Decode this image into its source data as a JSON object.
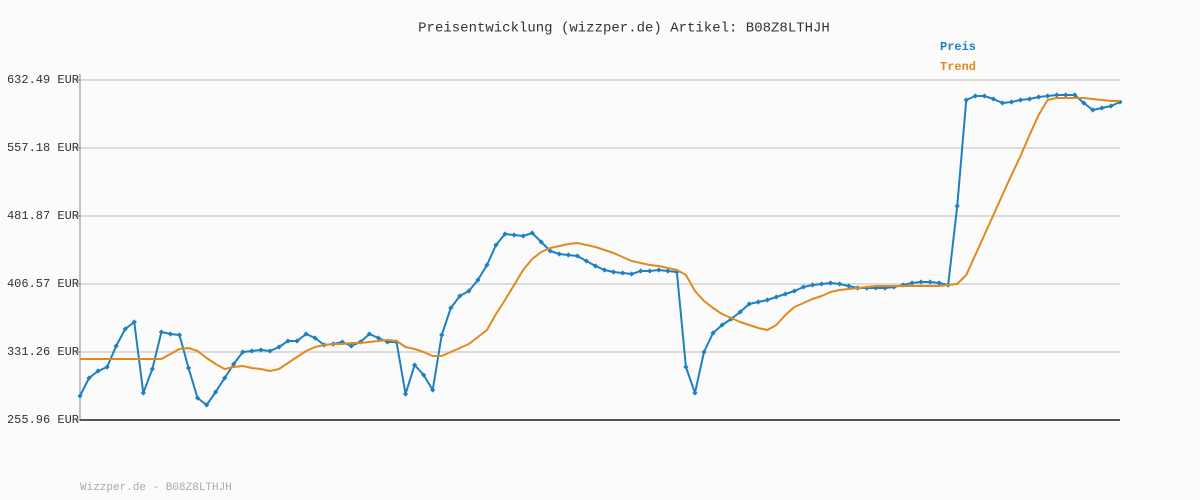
{
  "chart_data": {
    "type": "line",
    "title": "Preisentwicklung (wizzper.de) Artikel: B08Z8LTHJH",
    "footer": "Wizzper.de - B08Z8LTHJH",
    "legend": "top-right",
    "grid": true,
    "ylim": [
      255.96,
      632.49
    ],
    "yticks": [
      {
        "value": 255.96,
        "label": "255.96 EUR"
      },
      {
        "value": 331.26,
        "label": "331.26 EUR"
      },
      {
        "value": 406.57,
        "label": "406.57 EUR"
      },
      {
        "value": 481.87,
        "label": "481.87 EUR"
      },
      {
        "value": 557.18,
        "label": "557.18 EUR"
      },
      {
        "value": 632.49,
        "label": "632.49 EUR"
      }
    ],
    "series": [
      {
        "name": "Preis",
        "color": "#1f80c0",
        "markers": true,
        "values": [
          282.54,
          302.47,
          310.22,
          314.65,
          337.91,
          356.74,
          364.49,
          285.86,
          312.44,
          353.41,
          351.2,
          350.09,
          313.55,
          280.32,
          272.57,
          286.97,
          302.47,
          317.98,
          331.27,
          332.37,
          333.48,
          332.37,
          336.8,
          343.45,
          343.45,
          351.2,
          346.77,
          339.02,
          340.13,
          342.34,
          337.91,
          342.34,
          351.2,
          346.77,
          342.34,
          342.34,
          284.75,
          316.87,
          305.79,
          289.18,
          350.09,
          379.99,
          393.28,
          398.82,
          411.0,
          427.61,
          449.76,
          461.94,
          460.84,
          459.73,
          463.05,
          453.08,
          443.12,
          439.8,
          438.69,
          437.58,
          432.04,
          426.51,
          422.08,
          419.86,
          418.75,
          417.65,
          420.97,
          420.97,
          422.08,
          420.97,
          419.86,
          314.65,
          285.86,
          331.27,
          352.31,
          361.17,
          367.81,
          375.56,
          384.42,
          386.64,
          388.85,
          392.18,
          395.5,
          398.82,
          403.25,
          405.46,
          406.57,
          407.68,
          406.57,
          404.36,
          402.14,
          402.14,
          402.14,
          402.14,
          403.25,
          405.46,
          407.68,
          408.79,
          408.79,
          407.68,
          405.46,
          492.95,
          610.34,
          614.77,
          614.77,
          611.45,
          607.02,
          608.13,
          610.34,
          611.45,
          613.66,
          614.77,
          615.88,
          615.88,
          615.88,
          607.02,
          599.27,
          601.48,
          603.7,
          608.13
        ]
      },
      {
        "name": "Trend",
        "color": "#e08a1e",
        "markers": false,
        "values": [
          323.51,
          323.51,
          323.51,
          323.51,
          323.51,
          323.51,
          323.51,
          323.51,
          323.51,
          323.51,
          329.05,
          334.59,
          335.7,
          332.37,
          324.62,
          317.98,
          312.44,
          314.65,
          315.76,
          313.55,
          312.44,
          310.22,
          312.44,
          319.08,
          325.73,
          332.37,
          336.8,
          339.02,
          340.13,
          340.13,
          341.23,
          341.23,
          342.34,
          343.45,
          344.56,
          343.45,
          336.8,
          334.59,
          331.27,
          326.84,
          326.84,
          331.27,
          335.7,
          340.13,
          347.88,
          355.63,
          373.35,
          388.85,
          405.46,
          422.08,
          434.26,
          442.01,
          446.44,
          448.65,
          450.87,
          451.98,
          449.76,
          447.55,
          444.22,
          440.9,
          436.47,
          432.04,
          429.83,
          427.61,
          426.51,
          424.29,
          422.08,
          416.54,
          398.82,
          387.75,
          379.99,
          373.35,
          368.92,
          364.49,
          361.17,
          357.84,
          355.63,
          361.17,
          372.24,
          381.1,
          385.53,
          389.96,
          393.28,
          397.71,
          399.93,
          401.03,
          402.14,
          403.25,
          404.36,
          404.36,
          404.36,
          404.36,
          404.36,
          404.36,
          404.36,
          404.36,
          405.46,
          406.57,
          416.54,
          438.69,
          460.84,
          482.99,
          505.13,
          527.28,
          548.32,
          571.58,
          593.73,
          610.34,
          612.56,
          612.56,
          612.56,
          612.56,
          611.45,
          610.34,
          609.23,
          609.23
        ]
      }
    ]
  }
}
